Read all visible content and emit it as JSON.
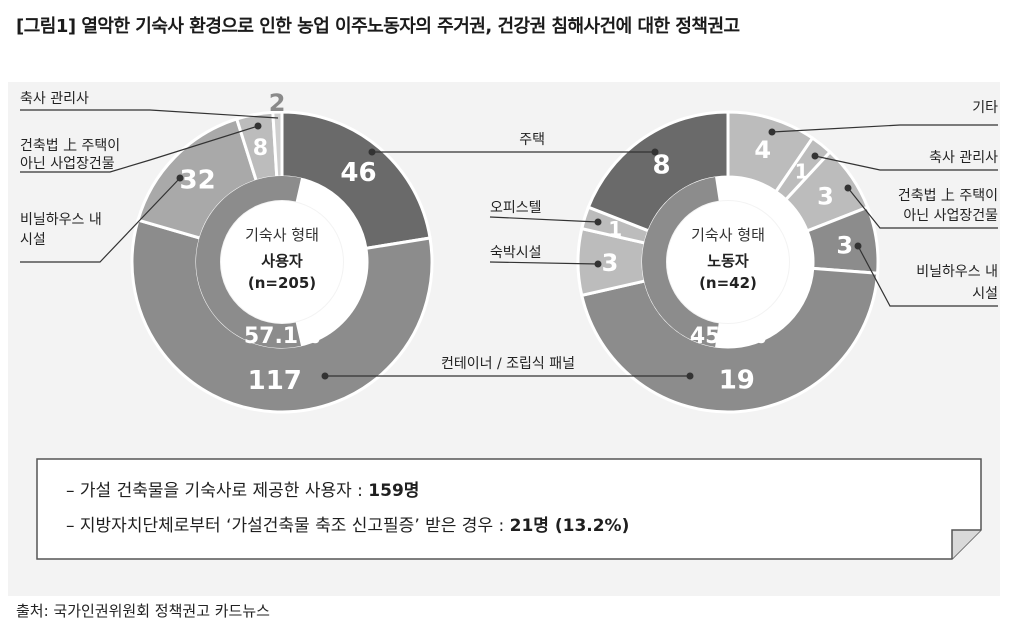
{
  "title": "[그림1] 열악한 기숙사 환경으로 인한 농업 이주노동자의 주거권, 건강권 침해사건에 대한 정책권고",
  "source": "출처: 국가인권위원회 정책권고 카드뉴스",
  "notes": [
    {
      "prefix": "– 가설 건축물을 기숙사로 제공한 사용자 : ",
      "value": "159명"
    },
    {
      "prefix": "– 지방자치단체로부터 ‘가설건축물 축조 신고필증’ 받은 경우 : ",
      "value": "21명 (13.2%)"
    }
  ],
  "colors": {
    "dark": "#6a6a6a",
    "mid": "#8c8c8c",
    "light": "#a9a9a9",
    "lighter": "#bcbcbc",
    "panel": "#f3f3f3"
  },
  "chart_data": [
    {
      "type": "pie",
      "center_title": "기숙사 형태",
      "center_group": "사용자",
      "center_n": "(n=205)",
      "inner_percent": "57.1%",
      "inner_value": 57.1,
      "series": [
        {
          "name": "주택",
          "value": 46,
          "label": "46"
        },
        {
          "name": "컨테이너 / 조립식 패널",
          "value": 117,
          "label": "117"
        },
        {
          "name": "비닐하우스 내 시설",
          "value": 32,
          "label": "32"
        },
        {
          "name": "건축법 上 주택이 아닌 사업장건물",
          "value": 8,
          "label": "8"
        },
        {
          "name": "축사 관리사",
          "value": 2,
          "label": "2"
        }
      ]
    },
    {
      "type": "pie",
      "center_title": "기숙사 형태",
      "center_group": "노동자",
      "center_n": "(n=42)",
      "inner_percent": "45.2%",
      "inner_value": 45.2,
      "series": [
        {
          "name": "기타",
          "value": 4,
          "label": "4"
        },
        {
          "name": "축사 관리사",
          "value": 1,
          "label": "1"
        },
        {
          "name": "건축법 上 주택이 아닌 사업장건물",
          "value": 3,
          "label": "3"
        },
        {
          "name": "비닐하우스 내 시설",
          "value": 3,
          "label": "3"
        },
        {
          "name": "컨테이너 / 조립식 패널",
          "value": 19,
          "label": "19"
        },
        {
          "name": "숙박시설",
          "value": 3,
          "label": "3"
        },
        {
          "name": "오피스텔",
          "value": 1,
          "label": "1"
        },
        {
          "name": "주택",
          "value": 8,
          "label": "8"
        }
      ]
    }
  ],
  "callouts": {
    "left_livestock": "축사 관리사",
    "left_nonhouse_1": "건축법 上 주택이",
    "left_nonhouse_2": "아닌 사업장건물",
    "left_vinyl_1": "비닐하우스 내",
    "left_vinyl_2": "시설",
    "house": "주택",
    "officetel": "오피스텔",
    "lodging": "숙박시설",
    "container": "컨테이너 / 조립식 패널",
    "right_other": "기타",
    "right_livestock": "축사 관리사",
    "right_nonhouse_1": "건축법 上 주택이",
    "right_nonhouse_2": "아닌 사업장건물",
    "right_vinyl_1": "비닐하우스 내",
    "right_vinyl_2": "시설"
  }
}
